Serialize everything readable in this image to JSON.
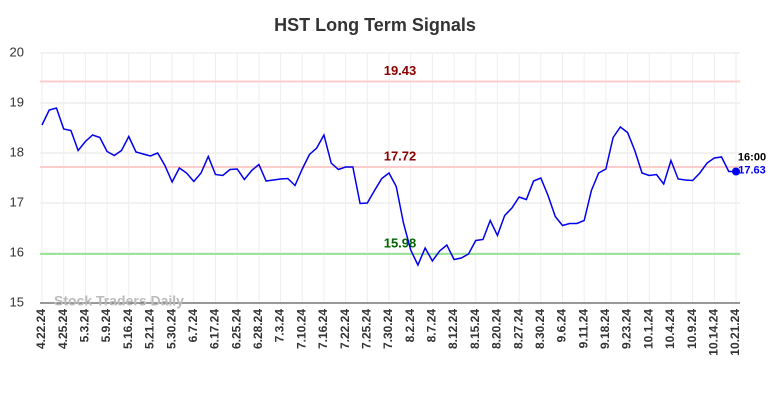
{
  "chart_data": {
    "type": "line",
    "title": "HST Long Term Signals",
    "categories": [
      "4.22.24",
      null,
      null,
      "4.25.24",
      null,
      null,
      "5.3.24",
      null,
      null,
      "5.9.24",
      null,
      null,
      "5.16.24",
      null,
      null,
      "5.21.24",
      null,
      null,
      "5.30.24",
      null,
      null,
      "6.7.24",
      null,
      null,
      "6.17.24",
      null,
      null,
      "6.25.24",
      null,
      null,
      "6.28.24",
      null,
      null,
      "7.3.24",
      null,
      null,
      "7.10.24",
      null,
      null,
      "7.16.24",
      null,
      null,
      "7.22.24",
      null,
      null,
      "7.25.24",
      null,
      null,
      "7.30.24",
      null,
      null,
      "8.2.24",
      null,
      null,
      "8.7.24",
      null,
      null,
      "8.12.24",
      null,
      null,
      "8.15.24",
      null,
      null,
      "8.20.24",
      null,
      null,
      "8.27.24",
      null,
      null,
      "8.30.24",
      null,
      null,
      "9.6.24",
      null,
      null,
      "9.11.24",
      null,
      null,
      "9.18.24",
      null,
      null,
      "9.23.24",
      null,
      null,
      "10.1.24",
      null,
      null,
      "10.4.24",
      null,
      null,
      "10.9.24",
      null,
      null,
      "10.14.24",
      null,
      null,
      "10.21.24"
    ],
    "values": [
      18.56,
      18.86,
      18.9,
      18.48,
      18.45,
      18.05,
      18.23,
      18.36,
      18.31,
      18.03,
      17.95,
      18.05,
      18.33,
      18.02,
      17.98,
      17.94,
      18.0,
      17.75,
      17.42,
      17.7,
      17.6,
      17.43,
      17.6,
      17.93,
      17.57,
      17.55,
      17.67,
      17.68,
      17.47,
      17.65,
      17.77,
      17.44,
      17.46,
      17.48,
      17.49,
      17.35,
      17.68,
      17.97,
      18.1,
      18.36,
      17.8,
      17.67,
      17.72,
      17.72,
      16.99,
      17.0,
      17.25,
      17.49,
      17.6,
      17.33,
      16.6,
      16.06,
      15.76,
      16.1,
      15.84,
      16.04,
      16.16,
      15.87,
      15.9,
      15.98,
      16.25,
      16.27,
      16.65,
      16.35,
      16.75,
      16.9,
      17.12,
      17.07,
      17.44,
      17.5,
      17.15,
      16.73,
      16.55,
      16.59,
      16.59,
      16.65,
      17.25,
      17.6,
      17.68,
      18.31,
      18.52,
      18.41,
      18.05,
      17.6,
      17.55,
      17.57,
      17.38,
      17.85,
      17.48,
      17.46,
      17.45,
      17.6,
      17.8,
      17.9,
      17.92,
      17.63,
      17.63
    ],
    "color": "#0000ee",
    "ylim": [
      15,
      20
    ],
    "yticks": [
      15,
      16,
      17,
      18,
      19,
      20
    ],
    "grid": true,
    "hlines": [
      {
        "value": 19.43,
        "color": "#ffcccc",
        "label_color": "#8b0000"
      },
      {
        "value": 17.72,
        "color": "#ffcccc",
        "label_color": "#8b0000"
      },
      {
        "value": 15.98,
        "color": "#99e699",
        "label_color": "#006400"
      }
    ],
    "last_time": "16:00",
    "watermark": "Stock Traders Daily"
  }
}
